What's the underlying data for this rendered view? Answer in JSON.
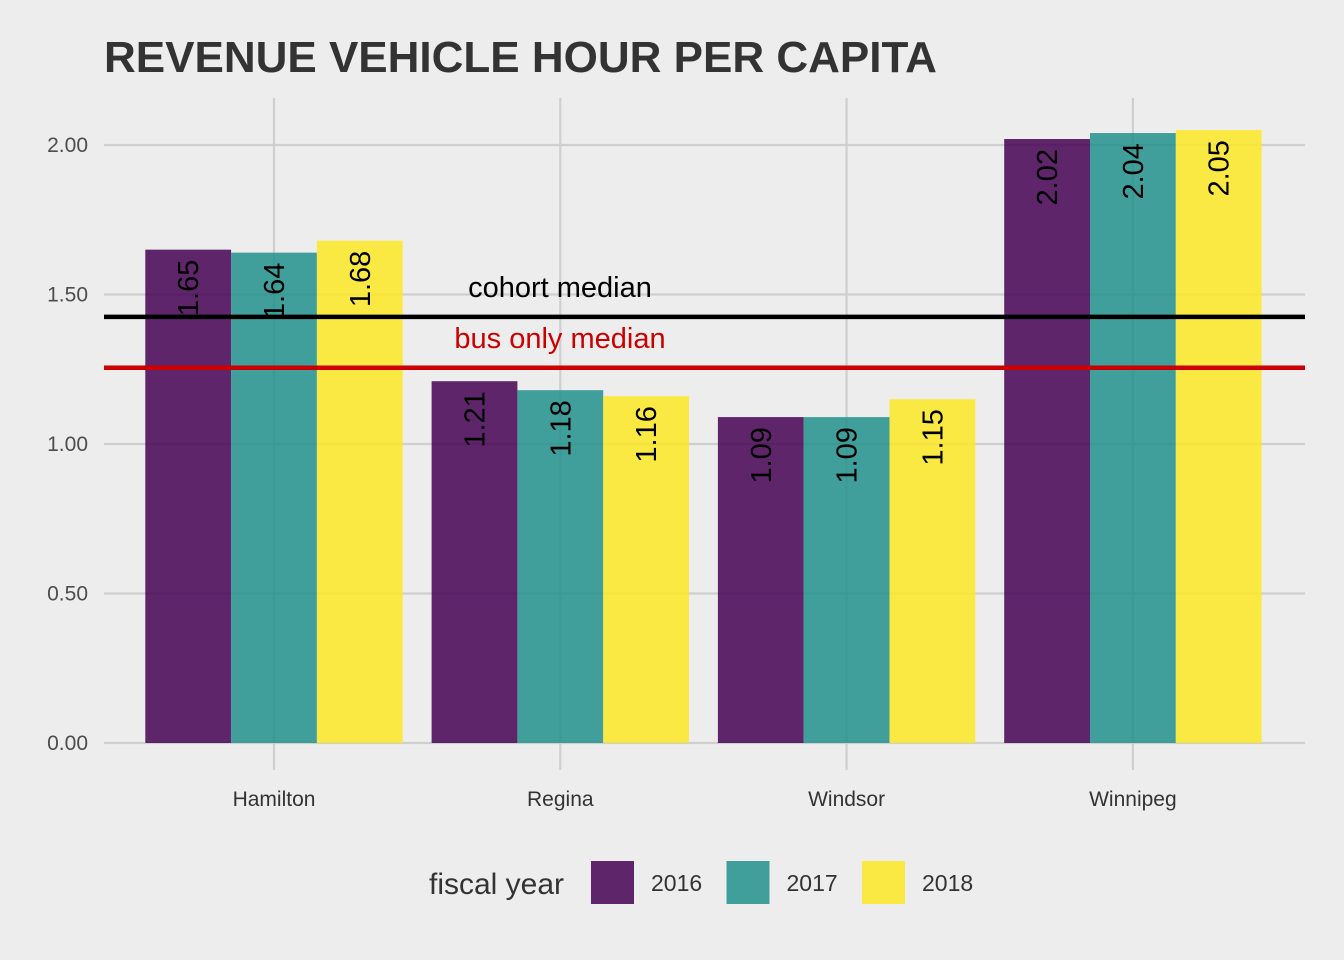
{
  "chart_data": {
    "type": "bar",
    "title": "REVENUE VEHICLE HOUR PER CAPITA",
    "xlabel": "",
    "ylabel": "",
    "ylim": [
      0,
      2.15
    ],
    "yticks": [
      "0.00",
      "0.50",
      "1.00",
      "1.50",
      "2.00"
    ],
    "categories": [
      "Hamilton",
      "Regina",
      "Windsor",
      "Winnipeg"
    ],
    "series": [
      {
        "name": "2016",
        "color": "#440154",
        "values": [
          1.65,
          1.21,
          1.09,
          2.02
        ],
        "labels": [
          "1.65",
          "1.21",
          "1.09",
          "2.02"
        ]
      },
      {
        "name": "2017",
        "color": "#21908C",
        "values": [
          1.64,
          1.18,
          1.09,
          2.04
        ],
        "labels": [
          "1.64",
          "1.18",
          "1.09",
          "2.04"
        ]
      },
      {
        "name": "2018",
        "color": "#FDE725",
        "values": [
          1.68,
          1.16,
          1.15,
          2.05
        ],
        "labels": [
          "1.68",
          "1.16",
          "1.15",
          "2.05"
        ]
      }
    ],
    "reference_lines": [
      {
        "label": "cohort median",
        "value": 1.425,
        "color": "#000000"
      },
      {
        "label": "bus only median",
        "value": 1.255,
        "color": "#CC0000"
      }
    ],
    "legend": {
      "title": "fiscal year",
      "position": "bottom"
    },
    "grid": true
  }
}
